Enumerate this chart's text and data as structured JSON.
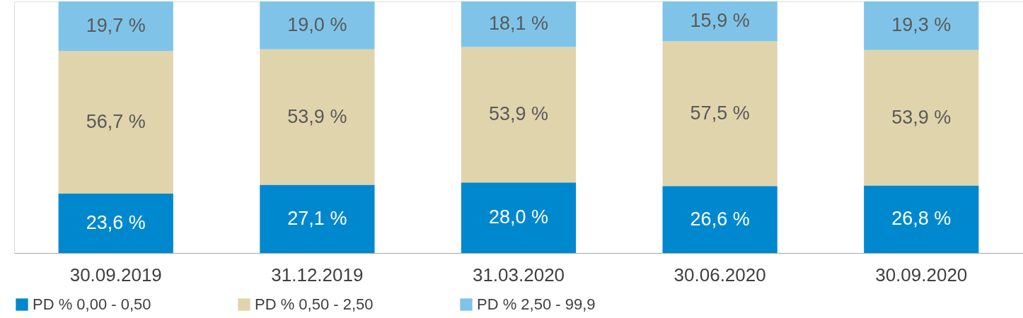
{
  "chart_data": {
    "type": "bar",
    "stacked": true,
    "legend": "bottom",
    "grid": false,
    "categories": [
      "30.09.2019",
      "31.12.2019",
      "31.03.2020",
      "30.06.2020",
      "30.09.2020"
    ],
    "series": [
      {
        "name": "PD % 0,00 - 0,50",
        "color": "#0088cf",
        "values": [
          23.6,
          27.1,
          28.0,
          26.6,
          26.8
        ],
        "value_labels": [
          "23,6 %",
          "27,1 %",
          "28,0 %",
          "26,6 %",
          "26,8 %"
        ]
      },
      {
        "name": "PD % 0,50 - 2,50",
        "color": "#e0d4ac",
        "values": [
          56.7,
          53.9,
          53.9,
          57.5,
          53.9
        ],
        "value_labels": [
          "56,7 %",
          "53,9 %",
          "53,9 %",
          "57,5 %",
          "53,9 %"
        ]
      },
      {
        "name": "PD % 2,50 - 99,9",
        "color": "#7fc4e8",
        "values": [
          19.7,
          19.0,
          18.1,
          15.9,
          19.3
        ],
        "value_labels": [
          "19,7 %",
          "19,0 %",
          "18,1 %",
          "15,9 %",
          "19,3 %"
        ]
      }
    ]
  }
}
